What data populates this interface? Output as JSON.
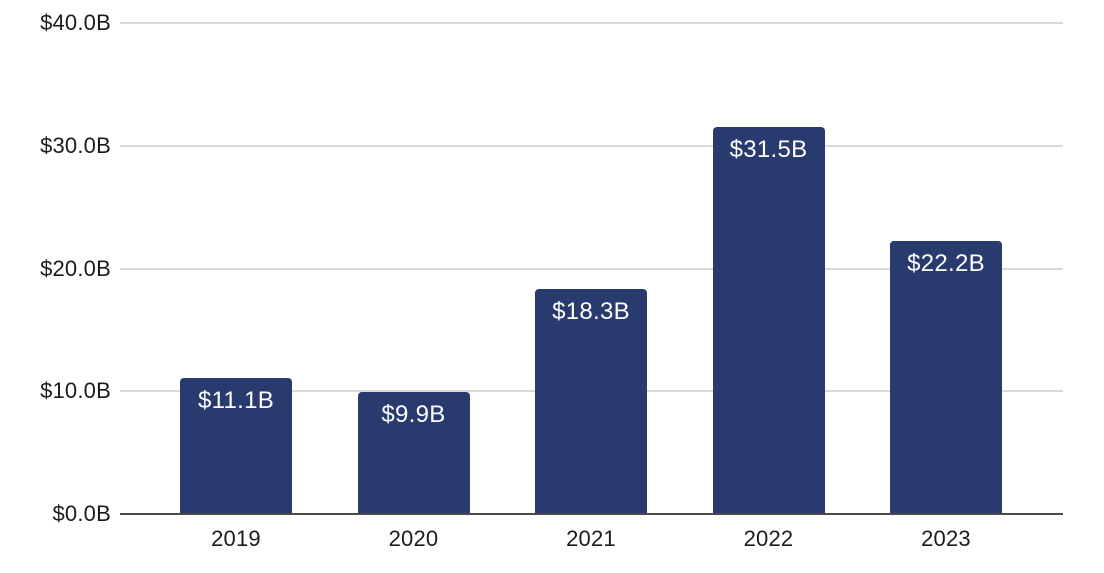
{
  "chart_data": {
    "type": "bar",
    "title": "",
    "categories": [
      "2019",
      "2020",
      "2021",
      "2022",
      "2023"
    ],
    "values": [
      11.1,
      9.9,
      18.3,
      31.5,
      22.2
    ],
    "bar_labels": [
      "$11.1B",
      "$9.9B",
      "$18.3B",
      "$31.5B",
      "$22.2B"
    ],
    "y_ticks": [
      {
        "value": 0,
        "label": "$0.0B"
      },
      {
        "value": 10,
        "label": "$10.0B"
      },
      {
        "value": 20,
        "label": "$20.0B"
      },
      {
        "value": 30,
        "label": "$30.0B"
      },
      {
        "value": 40,
        "label": "$40.0B"
      }
    ],
    "xlabel": "",
    "ylabel": "",
    "ylim": [
      0,
      40
    ],
    "grid": true,
    "legend": "none",
    "colors": {
      "bar_fill": "#293A6E",
      "bar_label_text": "#FFFFFF",
      "axis_text": "#1C1C1C",
      "gridline": "#D9D9D9",
      "baseline": "#4A4A4A",
      "background": "#FFFFFF"
    }
  }
}
